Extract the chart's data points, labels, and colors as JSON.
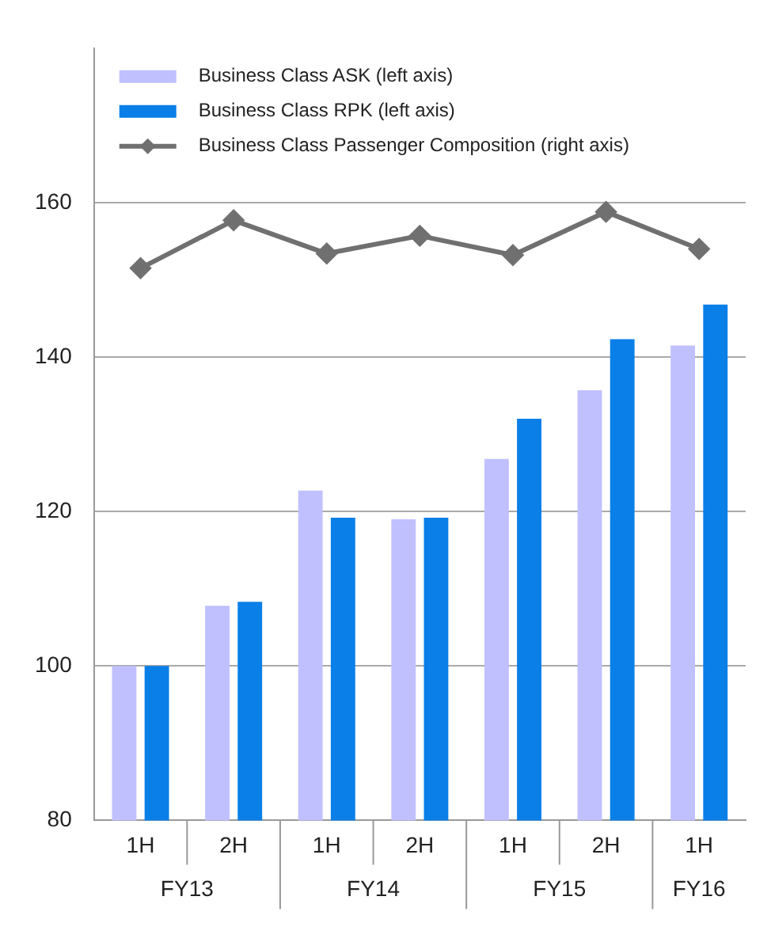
{
  "chart_data": {
    "type": "bar",
    "categories": [
      "1H",
      "2H",
      "1H",
      "2H",
      "1H",
      "2H",
      "1H"
    ],
    "series": [
      {
        "name": "Business Class ASK (left axis)",
        "color": "#c0c0ff",
        "values": [
          100,
          107.8,
          122.7,
          119,
          126.8,
          135.7,
          141.5
        ]
      },
      {
        "name": "Business Class RPK (left axis)",
        "color": "#0a7fe8",
        "values": [
          100,
          108.3,
          119.2,
          119.2,
          132,
          142.3,
          146.8
        ]
      },
      {
        "name": "Business Class Passenger Composition (right axis)",
        "type": "line",
        "color": "#707070",
        "values": [
          151.5,
          157.7,
          153.4,
          155.7,
          153.2,
          158.8,
          154
        ]
      }
    ],
    "annotations": [
      "FY13",
      "FY14",
      "FY15",
      "FY16"
    ],
    "ylim": [
      80,
      180
    ],
    "yticks": [
      80,
      100,
      120,
      140,
      160
    ],
    "grid": "y",
    "legend": "top left",
    "marker": "diamond",
    "line_style": "solid"
  }
}
